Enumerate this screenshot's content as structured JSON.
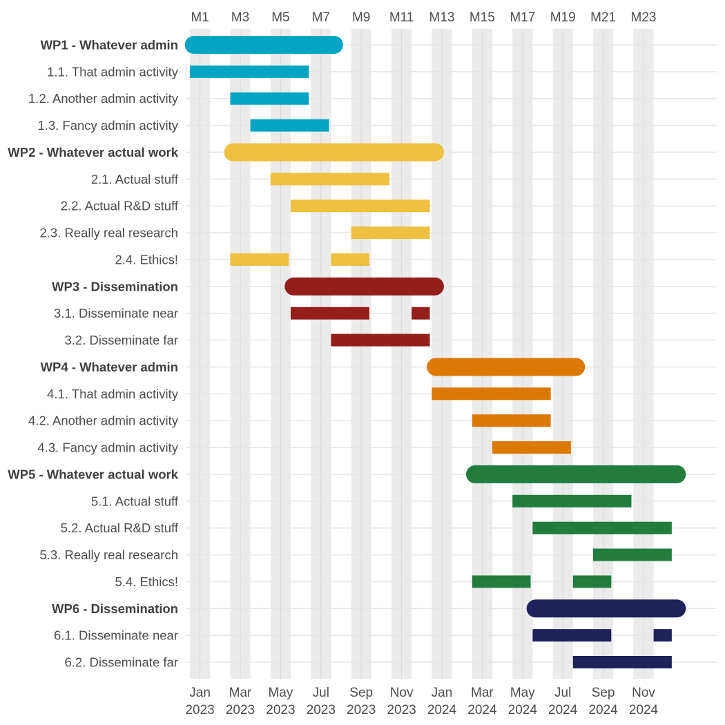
{
  "chart_data": {
    "type": "gantt",
    "x_unit": "month",
    "x_range": [
      "2023-01",
      "2024-12"
    ],
    "top_ticks": [
      "M1",
      "M3",
      "M5",
      "M7",
      "M9",
      "M11",
      "M13",
      "M15",
      "M17",
      "M19",
      "M21",
      "M23"
    ],
    "bottom_ticks": [
      {
        "month": "Jan",
        "year": "2023"
      },
      {
        "month": "Mar",
        "year": "2023"
      },
      {
        "month": "May",
        "year": "2023"
      },
      {
        "month": "Jul",
        "year": "2023"
      },
      {
        "month": "Sep",
        "year": "2023"
      },
      {
        "month": "Nov",
        "year": "2023"
      },
      {
        "month": "Jan",
        "year": "2024"
      },
      {
        "month": "Mar",
        "year": "2024"
      },
      {
        "month": "May",
        "year": "2024"
      },
      {
        "month": "Jul",
        "year": "2024"
      },
      {
        "month": "Sep",
        "year": "2024"
      },
      {
        "month": "Nov",
        "year": "2024"
      }
    ],
    "shaded_months": [
      1,
      3,
      5,
      7,
      9,
      11,
      13,
      15,
      17,
      19,
      21,
      23
    ],
    "grid": true,
    "rows": [
      {
        "label": "WP1 - Whatever admin",
        "level": "wp",
        "color": "#04a4c4",
        "segments": [
          [
            0.75,
            8.6
          ]
        ]
      },
      {
        "label": "1.1. That admin activity",
        "level": "task",
        "color": "#04a4c4",
        "segments": [
          [
            1,
            6.9
          ]
        ]
      },
      {
        "label": "1.2. Another admin activity",
        "level": "task",
        "color": "#04a4c4",
        "segments": [
          [
            3,
            6.9
          ]
        ]
      },
      {
        "label": "1.3. Fancy admin activity",
        "level": "task",
        "color": "#04a4c4",
        "segments": [
          [
            4,
            7.9
          ]
        ]
      },
      {
        "label": "WP2 - Whatever actual work",
        "level": "wp",
        "color": "#efbf3f",
        "segments": [
          [
            2.7,
            13.6
          ]
        ]
      },
      {
        "label": "2.1. Actual stuff",
        "level": "task",
        "color": "#efbf3f",
        "segments": [
          [
            5,
            10.9
          ]
        ]
      },
      {
        "label": "2.2. Actual R&D stuff",
        "level": "task",
        "color": "#efbf3f",
        "segments": [
          [
            6,
            12.9
          ]
        ]
      },
      {
        "label": "2.3. Really real research",
        "level": "task",
        "color": "#efbf3f",
        "segments": [
          [
            9,
            12.9
          ]
        ]
      },
      {
        "label": "2.4. Ethics!",
        "level": "task",
        "color": "#efbf3f",
        "segments": [
          [
            3,
            5.9
          ],
          [
            8,
            9.9
          ]
        ]
      },
      {
        "label": "WP3 - Dissemination",
        "level": "wp",
        "color": "#941e1a",
        "segments": [
          [
            5.7,
            13.6
          ]
        ]
      },
      {
        "label": "3.1. Disseminate near",
        "level": "task",
        "color": "#941e1a",
        "segments": [
          [
            6,
            9.9
          ],
          [
            12,
            12.9
          ]
        ]
      },
      {
        "label": "3.2. Disseminate far",
        "level": "task",
        "color": "#941e1a",
        "segments": [
          [
            8,
            12.9
          ]
        ]
      },
      {
        "label": "WP4 - Whatever admin",
        "level": "wp",
        "color": "#dc7804",
        "segments": [
          [
            12.75,
            20.6
          ]
        ]
      },
      {
        "label": "4.1. That admin activity",
        "level": "task",
        "color": "#dc7804",
        "segments": [
          [
            13,
            18.9
          ]
        ]
      },
      {
        "label": "4.2. Another admin activity",
        "level": "task",
        "color": "#dc7804",
        "segments": [
          [
            15,
            18.9
          ]
        ]
      },
      {
        "label": "4.3. Fancy admin activity",
        "level": "task",
        "color": "#dc7804",
        "segments": [
          [
            16,
            19.9
          ]
        ]
      },
      {
        "label": "WP5 - Whatever actual work",
        "level": "wp",
        "color": "#227c3d",
        "segments": [
          [
            14.7,
            25.6
          ]
        ]
      },
      {
        "label": "5.1. Actual stuff",
        "level": "task",
        "color": "#227c3d",
        "segments": [
          [
            17,
            22.9
          ]
        ]
      },
      {
        "label": "5.2. Actual R&D stuff",
        "level": "task",
        "color": "#227c3d",
        "segments": [
          [
            18,
            24.9
          ]
        ]
      },
      {
        "label": "5.3. Really real research",
        "level": "task",
        "color": "#227c3d",
        "segments": [
          [
            21,
            24.9
          ]
        ]
      },
      {
        "label": "5.4. Ethics!",
        "level": "task",
        "color": "#227c3d",
        "segments": [
          [
            15,
            17.9
          ],
          [
            20,
            21.9
          ]
        ]
      },
      {
        "label": "WP6 - Dissemination",
        "level": "wp",
        "color": "#1f215a",
        "segments": [
          [
            17.7,
            25.6
          ]
        ]
      },
      {
        "label": "6.1. Disseminate near",
        "level": "task",
        "color": "#1f215a",
        "segments": [
          [
            18,
            21.9
          ],
          [
            24,
            24.9
          ]
        ]
      },
      {
        "label": "6.2. Disseminate far",
        "level": "task",
        "color": "#1f215a",
        "segments": [
          [
            20,
            24.9
          ]
        ]
      }
    ]
  }
}
